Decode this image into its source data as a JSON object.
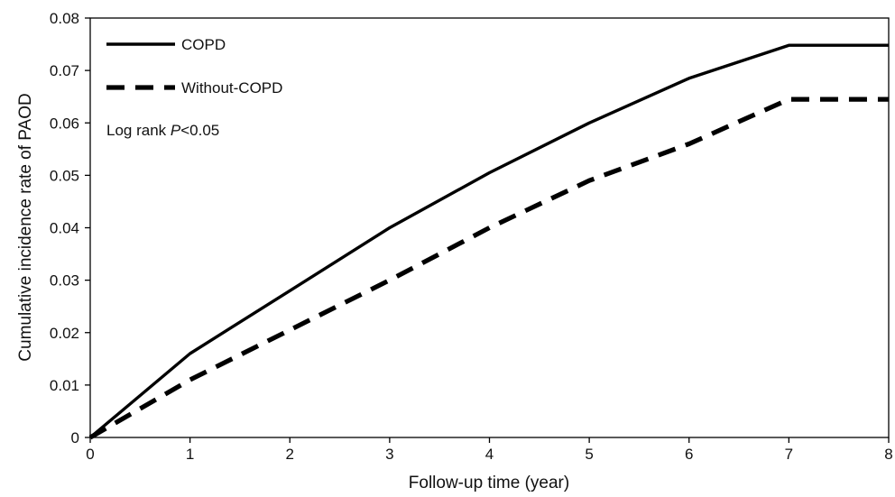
{
  "chart_data": {
    "type": "line",
    "xlabel": "Follow-up time (year)",
    "ylabel": "Cumulative incidence rate of PAOD",
    "xlim": [
      0,
      8
    ],
    "ylim": [
      0,
      0.08
    ],
    "x_ticks": [
      "0",
      "1",
      "2",
      "3",
      "4",
      "5",
      "6",
      "7",
      "8"
    ],
    "y_ticks": [
      "0",
      "0.01",
      "0.02",
      "0.03",
      "0.04",
      "0.05",
      "0.06",
      "0.07",
      "0.08"
    ],
    "grid": false,
    "legend_position": "top-left",
    "annotation": {
      "prefix": "Log rank ",
      "italic": "P",
      "suffix": "<0.05"
    },
    "series": [
      {
        "name": "COPD",
        "style": "solid",
        "color": "#000000",
        "x": [
          0,
          1,
          2,
          3,
          4,
          5,
          6,
          7,
          8
        ],
        "y": [
          0,
          0.016,
          0.028,
          0.04,
          0.0505,
          0.06,
          0.0685,
          0.0748,
          0.0748
        ]
      },
      {
        "name": "Without-COPD",
        "style": "dashed",
        "color": "#000000",
        "x": [
          0,
          1,
          2,
          3,
          4,
          5,
          6,
          7,
          8
        ],
        "y": [
          0,
          0.011,
          0.0205,
          0.03,
          0.04,
          0.049,
          0.056,
          0.0645,
          0.0645
        ]
      }
    ]
  }
}
